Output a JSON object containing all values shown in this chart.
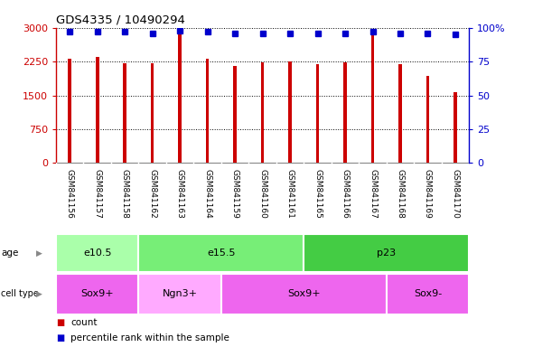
{
  "title": "GDS4335 / 10490294",
  "samples": [
    "GSM841156",
    "GSM841157",
    "GSM841158",
    "GSM841162",
    "GSM841163",
    "GSM841164",
    "GSM841159",
    "GSM841160",
    "GSM841161",
    "GSM841165",
    "GSM841166",
    "GSM841167",
    "GSM841168",
    "GSM841169",
    "GSM841170"
  ],
  "counts": [
    2310,
    2360,
    2220,
    2220,
    2870,
    2310,
    2160,
    2240,
    2260,
    2200,
    2240,
    2840,
    2190,
    1940,
    1570
  ],
  "percentile_ranks": [
    97,
    97,
    97,
    96,
    98,
    97,
    96,
    96,
    96,
    96,
    96,
    97,
    96,
    96,
    95
  ],
  "bar_color": "#cc0000",
  "dot_color": "#0000cc",
  "ylim_left": [
    0,
    3000
  ],
  "ylim_right": [
    0,
    100
  ],
  "yticks_left": [
    0,
    750,
    1500,
    2250,
    3000
  ],
  "ytick_labels_left": [
    "0",
    "750",
    "1500",
    "2250",
    "3000"
  ],
  "yticks_right": [
    0,
    25,
    50,
    75,
    100
  ],
  "ytick_labels_right": [
    "0",
    "25",
    "50",
    "75",
    "100%"
  ],
  "age_groups": [
    {
      "label": "e10.5",
      "start": 0,
      "end": 3,
      "color": "#aaffaa"
    },
    {
      "label": "e15.5",
      "start": 3,
      "end": 9,
      "color": "#77ee77"
    },
    {
      "label": "p23",
      "start": 9,
      "end": 15,
      "color": "#44cc44"
    }
  ],
  "cell_type_groups": [
    {
      "label": "Sox9+",
      "start": 0,
      "end": 3,
      "color": "#ee66ee"
    },
    {
      "label": "Ngn3+",
      "start": 3,
      "end": 6,
      "color": "#ffaaff"
    },
    {
      "label": "Sox9+",
      "start": 6,
      "end": 12,
      "color": "#ee66ee"
    },
    {
      "label": "Sox9-",
      "start": 12,
      "end": 15,
      "color": "#ee66ee"
    }
  ],
  "legend_items": [
    {
      "color": "#cc0000",
      "label": "count"
    },
    {
      "color": "#0000cc",
      "label": "percentile rank within the sample"
    }
  ],
  "xtick_bg_color": "#cccccc",
  "plot_bg_color": "#ffffff",
  "bar_width": 0.12
}
